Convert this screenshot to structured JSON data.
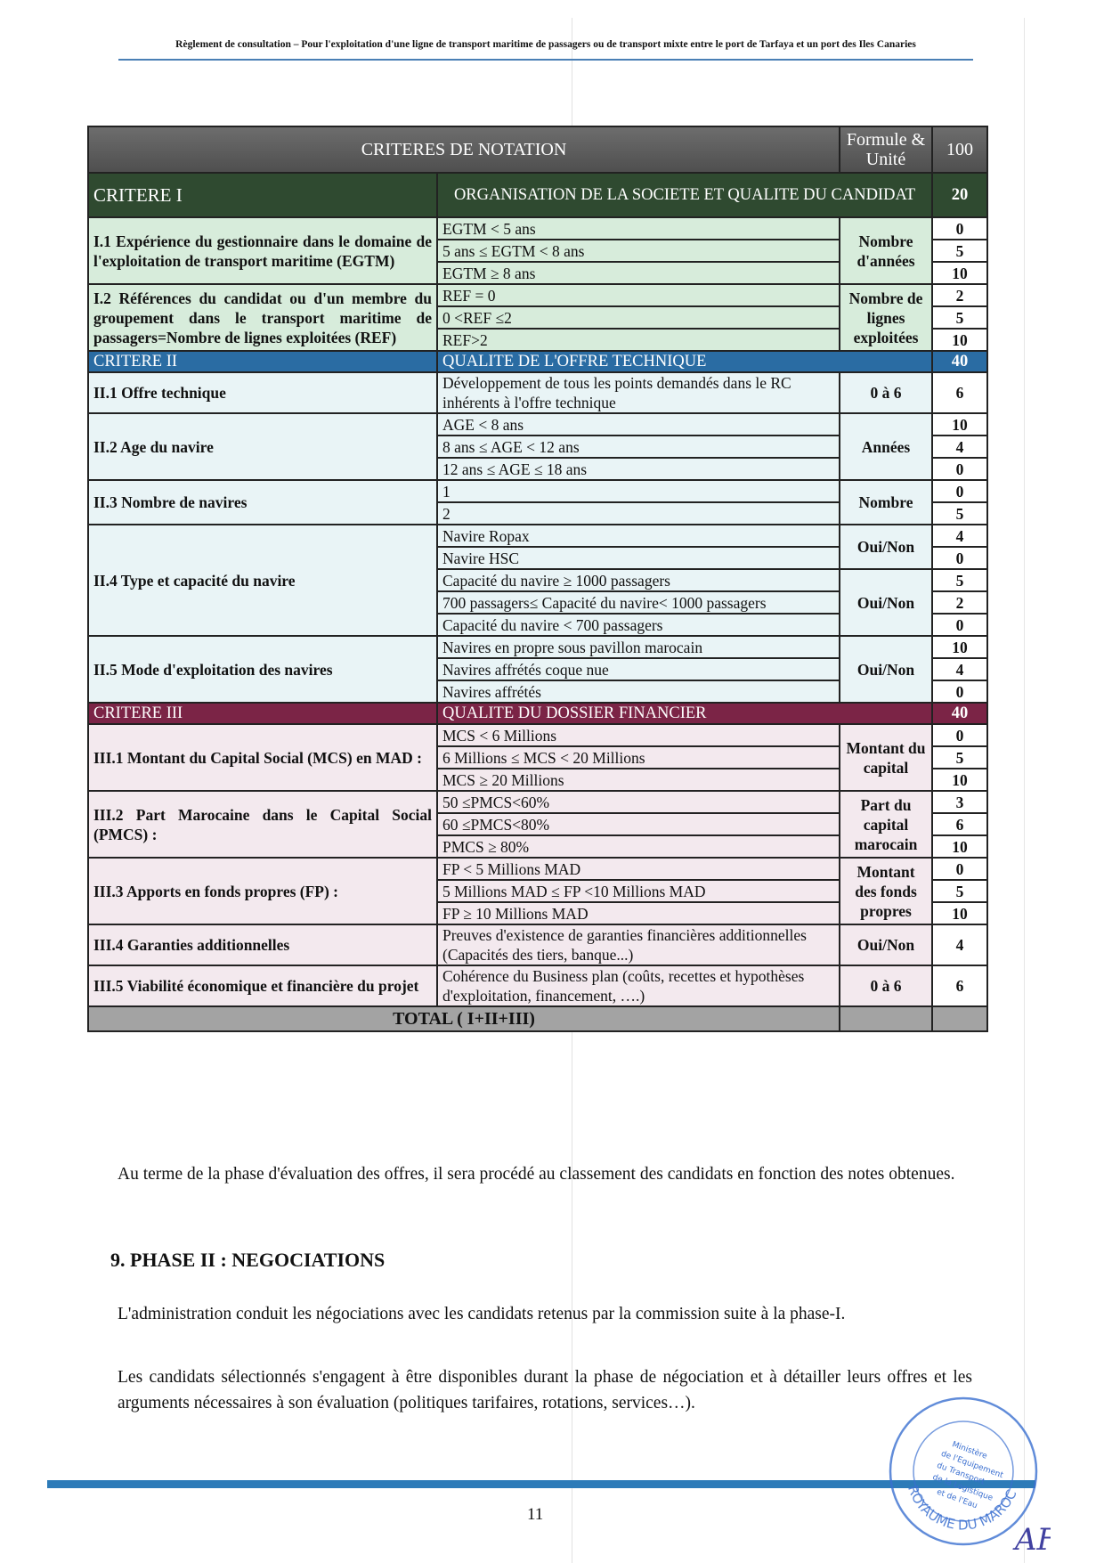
{
  "header": {
    "running_title": "Règlement de consultation – Pour l'exploitation d'une ligne de transport maritime de passagers ou de transport mixte entre le port de Tarfaya et un port des Iles Canaries"
  },
  "table": {
    "title": "CRITERES DE NOTATION",
    "unit_header": "Formule & Unité",
    "total_points": "100",
    "total_label": "TOTAL ( I+II+III)",
    "criteria": [
      {
        "label": "CRITERE I",
        "title": "ORGANISATION DE LA SOCIETE ET QUALITE DU CANDIDAT",
        "points": "20",
        "color": "#2f4a30",
        "row_color": "#d7ecdb",
        "items": [
          {
            "label": "I.1 Expérience du gestionnaire dans le domaine de l'exploitation de transport maritime (EGTM)",
            "groups": [
              {
                "unit": "Nombre d'années",
                "options": [
                  {
                    "text": "EGTM  < 5 ans",
                    "score": "0"
                  },
                  {
                    "text": "5 ans ≤ EGTM < 8 ans",
                    "score": "5"
                  },
                  {
                    "text": "EGTM ≥ 8 ans",
                    "score": "10"
                  }
                ]
              }
            ]
          },
          {
            "label": "I.2 Références du candidat ou d'un membre du groupement dans le transport maritime de passagers=Nombre de lignes exploitées (REF)",
            "groups": [
              {
                "unit": "Nombre de lignes exploitées",
                "options": [
                  {
                    "text": "REF = 0",
                    "score": "2"
                  },
                  {
                    "text": "0 <REF ≤2",
                    "score": "5"
                  },
                  {
                    "text": "REF>2",
                    "score": "10"
                  }
                ]
              }
            ]
          }
        ]
      },
      {
        "label": "CRITERE II",
        "title": "QUALITE DE L'OFFRE TECHNIQUE",
        "points": "40",
        "color": "#2a6ca3",
        "row_color": "#e9f4f6",
        "items": [
          {
            "label": "II.1 Offre technique",
            "groups": [
              {
                "unit": "0 à 6",
                "options": [
                  {
                    "text": "Développement de tous les points demandés dans le RC inhérents à l'offre technique",
                    "score": "6"
                  }
                ]
              }
            ]
          },
          {
            "label": "II.2 Age du navire",
            "groups": [
              {
                "unit": "Années",
                "options": [
                  {
                    "text": "AGE  < 8 ans",
                    "score": "10"
                  },
                  {
                    "text": "8 ans ≤ AGE < 12 ans",
                    "score": "4"
                  },
                  {
                    "text": "12 ans ≤ AGE ≤  18 ans",
                    "score": "0"
                  }
                ]
              }
            ]
          },
          {
            "label": "II.3 Nombre de navires",
            "groups": [
              {
                "unit": "Nombre",
                "options": [
                  {
                    "text": "1",
                    "score": "0"
                  },
                  {
                    "text": "2",
                    "score": "5"
                  }
                ]
              }
            ]
          },
          {
            "label": "II.4 Type et capacité du navire",
            "groups": [
              {
                "unit": "Oui/Non",
                "options": [
                  {
                    "text": "Navire Ropax",
                    "score": "4"
                  },
                  {
                    "text": "Navire HSC",
                    "score": "0"
                  }
                ]
              },
              {
                "unit": "Oui/Non",
                "options": [
                  {
                    "text": "Capacité du navire ≥ 1000 passagers",
                    "score": "5"
                  },
                  {
                    "text": "700 passagers≤ Capacité du navire< 1000 passagers",
                    "score": "2"
                  },
                  {
                    "text": "Capacité du navire < 700 passagers",
                    "score": "0"
                  }
                ]
              }
            ]
          },
          {
            "label": "II.5 Mode d'exploitation des navires",
            "groups": [
              {
                "unit": "Oui/Non",
                "options": [
                  {
                    "text": "Navires en propre sous pavillon marocain",
                    "score": "10"
                  },
                  {
                    "text": "Navires affrétés coque nue",
                    "score": "4"
                  },
                  {
                    "text": "Navires affrétés",
                    "score": "0"
                  }
                ]
              }
            ]
          }
        ]
      },
      {
        "label": "CRITERE III",
        "title": "QUALITE DU DOSSIER FINANCIER",
        "points": "40",
        "color": "#7b2446",
        "row_color": "#f3e9ee",
        "items": [
          {
            "label": "III.1 Montant du Capital Social (MCS) en MAD :",
            "groups": [
              {
                "unit": "Montant du capital",
                "options": [
                  {
                    "text": "MCS < 6 Millions",
                    "score": "0"
                  },
                  {
                    "text": "6 Millions ≤ MCS < 20 Millions",
                    "score": "5"
                  },
                  {
                    "text": "MCS ≥ 20 Millions",
                    "score": "10"
                  }
                ]
              }
            ]
          },
          {
            "label": "III.2 Part Marocaine dans le Capital Social (PMCS) :",
            "groups": [
              {
                "unit": "Part du capital marocain",
                "options": [
                  {
                    "text": "50 ≤PMCS<60%",
                    "score": "3"
                  },
                  {
                    "text": "60 ≤PMCS<80%",
                    "score": "6"
                  },
                  {
                    "text": "PMCS ≥ 80%",
                    "score": "10"
                  }
                ]
              }
            ]
          },
          {
            "label": "III.3 Apports en fonds propres (FP) :",
            "groups": [
              {
                "unit": "Montant des fonds propres",
                "options": [
                  {
                    "text": "FP < 5 Millions MAD",
                    "score": "0"
                  },
                  {
                    "text": "5 Millions MAD ≤ FP <10 Millions MAD",
                    "score": "5"
                  },
                  {
                    "text": "FP ≥ 10 Millions MAD",
                    "score": "10"
                  }
                ]
              }
            ]
          },
          {
            "label": "III.4 Garanties additionnelles",
            "groups": [
              {
                "unit": "Oui/Non",
                "options": [
                  {
                    "text": "Preuves d'existence de garanties financières additionnelles (Capacités des tiers, banque...)",
                    "score": "4"
                  }
                ]
              }
            ]
          },
          {
            "label": "III.5 Viabilité économique et financière du projet",
            "groups": [
              {
                "unit": "0 à 6",
                "options": [
                  {
                    "text": "Cohérence du Business plan (coûts, recettes et hypothèses d'exploitation, financement, ….)",
                    "score": "6"
                  }
                ]
              }
            ]
          }
        ]
      }
    ]
  },
  "body": {
    "para1": "Au terme de la phase d'évaluation des offres, il sera procédé au classement des candidats en fonction des notes obtenues.",
    "heading": "9.   PHASE II : NEGOCIATIONS",
    "para2": "L'administration conduit les négociations avec les candidats retenus par la commission suite à la phase-I.",
    "para3": "Les candidats sélectionnés s'engagent à être disponibles durant la phase de négociation et à détailler leurs offres et les arguments nécessaires à son évaluation (politiques tarifaires, rotations, services…)."
  },
  "footer": {
    "page_number": "11",
    "accent_color": "#2d7bb8"
  },
  "stamp": {
    "text_outer": "ROYAUME DU MAROC",
    "text_inner": "Ministère de l'Equipement du Transport de la Logistique et de l'Eau",
    "signature": "AF",
    "color": "#3a6fd0"
  }
}
